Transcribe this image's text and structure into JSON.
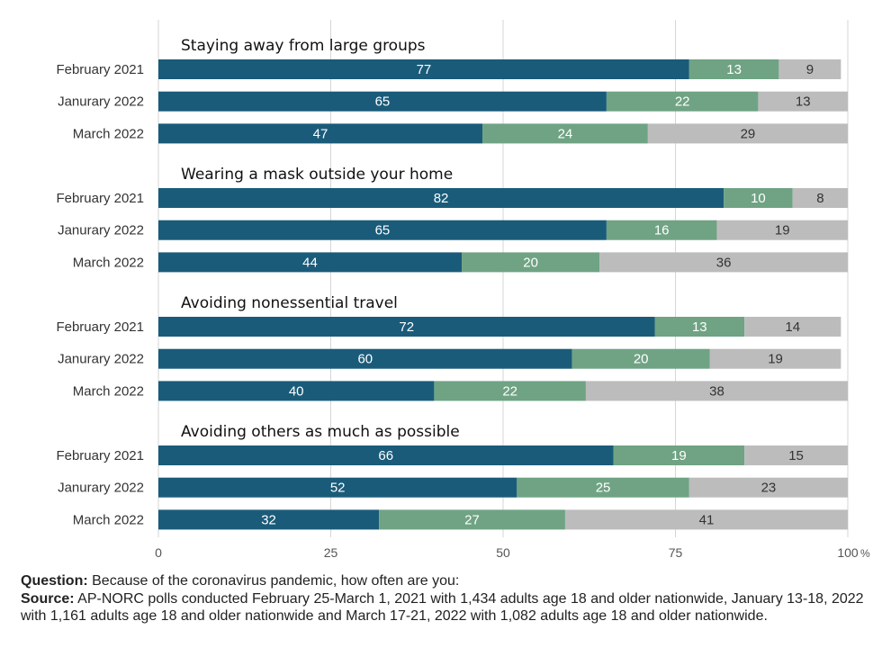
{
  "chart_data": {
    "type": "bar",
    "orientation": "horizontal",
    "stacked": true,
    "xlim": [
      0,
      100
    ],
    "x_ticks": [
      "0",
      "25",
      "50",
      "75",
      "100"
    ],
    "x_unit": "%",
    "grid": true,
    "colors": [
      "#1a5b7a",
      "#6fa384",
      "#bcbcbc"
    ],
    "groups": [
      {
        "title": "Staying away from large groups",
        "rows": [
          {
            "label": "February 2021",
            "values": [
              77,
              13,
              9
            ]
          },
          {
            "label": "Janurary 2022",
            "values": [
              65,
              22,
              13
            ]
          },
          {
            "label": "March 2022",
            "values": [
              47,
              24,
              29
            ]
          }
        ]
      },
      {
        "title": "Wearing a mask outside your home",
        "rows": [
          {
            "label": "February 2021",
            "values": [
              82,
              10,
              8
            ]
          },
          {
            "label": "Janurary 2022",
            "values": [
              65,
              16,
              19
            ]
          },
          {
            "label": "March 2022",
            "values": [
              44,
              20,
              36
            ]
          }
        ]
      },
      {
        "title": "Avoiding nonessential travel",
        "rows": [
          {
            "label": "February 2021",
            "values": [
              72,
              13,
              14
            ]
          },
          {
            "label": "Janurary 2022",
            "values": [
              60,
              20,
              19
            ]
          },
          {
            "label": "March 2022",
            "values": [
              40,
              22,
              38
            ]
          }
        ]
      },
      {
        "title": "Avoiding others as much as possible",
        "rows": [
          {
            "label": "February 2021",
            "values": [
              66,
              19,
              15
            ]
          },
          {
            "label": "Janurary 2022",
            "values": [
              52,
              25,
              23
            ]
          },
          {
            "label": "March 2022",
            "values": [
              32,
              27,
              41
            ]
          }
        ]
      }
    ]
  },
  "notes": {
    "question_label": "Question:",
    "question_text": " Because of the coronavirus pandemic, how often are you:",
    "source_label": "Source:",
    "source_text": "  AP-NORC polls conducted February 25-March 1, 2021 with 1,434 adults age 18 and older nationwide, January 13-18, 2022 with 1,161 adults age 18 and older nationwide and March 17-21, 2022 with 1,082 adults age 18 and older nationwide."
  }
}
